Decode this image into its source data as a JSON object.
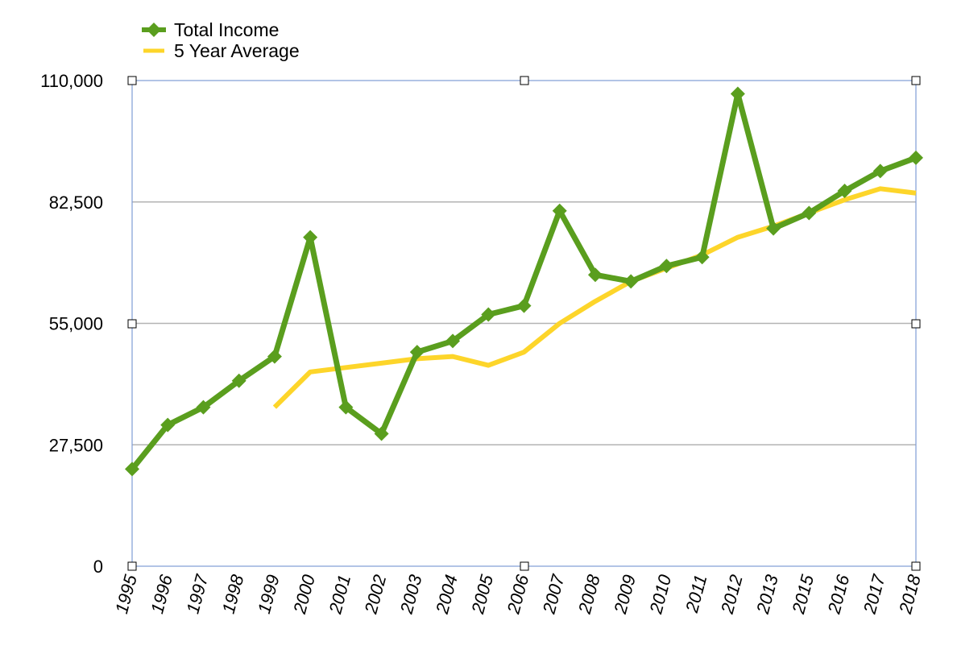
{
  "chart_data": {
    "type": "line",
    "categories": [
      "1995",
      "1996",
      "1997",
      "1998",
      "1999",
      "2000",
      "2001",
      "2002",
      "2003",
      "2004",
      "2005",
      "2006",
      "2007",
      "2008",
      "2009",
      "2010",
      "2011",
      "2012",
      "2013",
      "2015",
      "2016",
      "2017",
      "2018"
    ],
    "series": [
      {
        "name": "Total Income",
        "color": "#5a9e1e",
        "marker": "diamond",
        "values": [
          22000,
          32000,
          36000,
          42000,
          47500,
          74500,
          36000,
          30000,
          48500,
          51000,
          57000,
          59000,
          80500,
          66000,
          64500,
          68000,
          70000,
          107000,
          76500,
          80000,
          85000,
          89500,
          92500
        ]
      },
      {
        "name": "5 Year Average",
        "color": "#fdd52a",
        "marker": "none",
        "values": [
          null,
          null,
          null,
          null,
          36000,
          44000,
          45000,
          46000,
          47000,
          47500,
          45500,
          48500,
          55000,
          60000,
          64500,
          67500,
          70500,
          74500,
          77000,
          80000,
          83000,
          85500,
          84500
        ]
      }
    ],
    "y_ticks": [
      "0",
      "27,500",
      "55,000",
      "82,500",
      "110,000"
    ],
    "ylim": [
      0,
      110000
    ],
    "gridlines": "horizontal",
    "legend_position": "top-left",
    "plot_border_color": "#7e9cd6",
    "gridline_color": "#b3b3b3"
  }
}
